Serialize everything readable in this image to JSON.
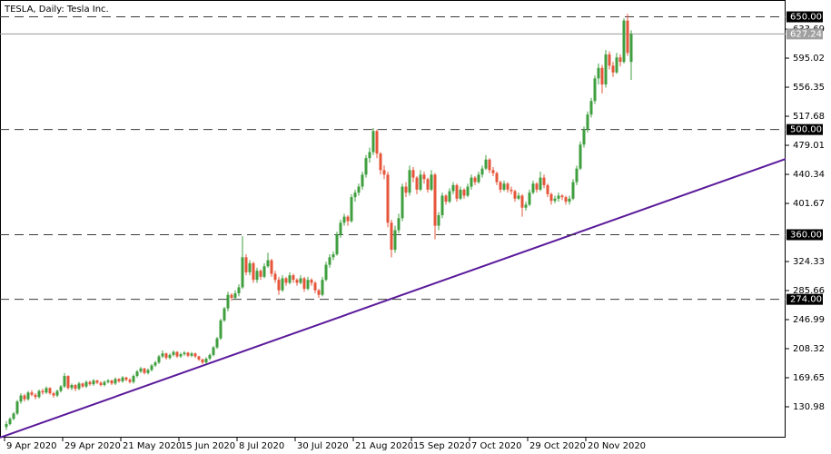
{
  "chart_data": {
    "type": "candlestick",
    "title": "TESLA, Daily:  Tesla Inc.",
    "colors": {
      "up": "#3f9f3f",
      "down": "#e6553a",
      "trendline": "#5b1a9a",
      "level": "#3a3a3a",
      "current": "#9a9a9a"
    },
    "ylim": [
      89.9,
      672.4
    ],
    "yticks": [
      130.98,
      169.65,
      208.32,
      246.99,
      285.66,
      324.33,
      401.67,
      440.34,
      479.01,
      517.68,
      556.35,
      595.02,
      633.69
    ],
    "levels": [
      {
        "value": 650,
        "label": "650.00"
      },
      {
        "value": 500,
        "label": "500.00"
      },
      {
        "value": 360,
        "label": "360.00"
      },
      {
        "value": 274,
        "label": "274.00"
      }
    ],
    "current_price": {
      "value": 627.24,
      "label": "627.24"
    },
    "trendline": [
      {
        "index": 0,
        "price": 93
      },
      {
        "index": 172,
        "price": 388
      }
    ],
    "categories": [
      "9 Apr 2020",
      null,
      null,
      null,
      null,
      null,
      null,
      null,
      null,
      null,
      null,
      null,
      null,
      null,
      null,
      null,
      "29 Apr 2020",
      null,
      null,
      null,
      null,
      null,
      null,
      null,
      null,
      null,
      null,
      null,
      null,
      null,
      null,
      null,
      "21 May 2020",
      null,
      null,
      null,
      null,
      null,
      null,
      null,
      null,
      null,
      null,
      null,
      null,
      null,
      null,
      null,
      "15 Jun 2020",
      null,
      null,
      null,
      null,
      null,
      null,
      null,
      null,
      null,
      null,
      null,
      null,
      null,
      null,
      null,
      "8 Jul 2020",
      null,
      null,
      null,
      null,
      null,
      null,
      null,
      null,
      null,
      null,
      null,
      null,
      null,
      null,
      null,
      "30 Jul 2020",
      null,
      null,
      null,
      null,
      null,
      null,
      null,
      null,
      null,
      null,
      null,
      null,
      null,
      null,
      null,
      "21 Aug 2020",
      null,
      null,
      null,
      null,
      null,
      null,
      null,
      null,
      null,
      null,
      null,
      null,
      null,
      null,
      null,
      "15 Sep 2020",
      null,
      null,
      null,
      null,
      null,
      null,
      null,
      null,
      null,
      null,
      null,
      null,
      null,
      null,
      null,
      "7 Oct 2020",
      null,
      null,
      null,
      null,
      null,
      null,
      null,
      null,
      null,
      null,
      null,
      null,
      null,
      null,
      null,
      "29 Oct 2020",
      null,
      null,
      null,
      null,
      null,
      null,
      null,
      null,
      null,
      null,
      null,
      null,
      null,
      null,
      null,
      "20 Nov 2020",
      null,
      null,
      null,
      null,
      null,
      null,
      null,
      null,
      null,
      null,
      null,
      null
    ],
    "candles": [
      [
        104,
        112,
        100,
        108
      ],
      [
        108,
        117,
        106,
        115
      ],
      [
        115,
        124,
        113,
        122
      ],
      [
        122,
        140,
        120,
        138
      ],
      [
        138,
        149,
        135,
        146
      ],
      [
        146,
        148,
        138,
        141
      ],
      [
        141,
        152,
        139,
        150
      ],
      [
        150,
        153,
        145,
        147
      ],
      [
        147,
        149,
        141,
        144
      ],
      [
        144,
        154,
        142,
        152
      ],
      [
        152,
        155,
        147,
        150
      ],
      [
        150,
        158,
        148,
        156
      ],
      [
        156,
        157,
        147,
        149
      ],
      [
        149,
        151,
        143,
        146
      ],
      [
        146,
        154,
        144,
        152
      ],
      [
        152,
        160,
        150,
        158
      ],
      [
        158,
        176,
        156,
        172
      ],
      [
        172,
        173,
        154,
        156
      ],
      [
        156,
        162,
        153,
        160
      ],
      [
        160,
        161,
        152,
        155
      ],
      [
        155,
        164,
        153,
        162
      ],
      [
        162,
        163,
        156,
        158
      ],
      [
        158,
        166,
        156,
        164
      ],
      [
        164,
        166,
        159,
        161
      ],
      [
        161,
        168,
        159,
        166
      ],
      [
        166,
        167,
        161,
        163
      ],
      [
        163,
        165,
        158,
        160
      ],
      [
        160,
        166,
        158,
        164
      ],
      [
        164,
        168,
        162,
        166
      ],
      [
        166,
        167,
        160,
        162
      ],
      [
        162,
        170,
        160,
        168
      ],
      [
        168,
        169,
        163,
        165
      ],
      [
        165,
        172,
        163,
        170
      ],
      [
        170,
        171,
        165,
        167
      ],
      [
        167,
        169,
        162,
        164
      ],
      [
        164,
        174,
        162,
        172
      ],
      [
        172,
        180,
        170,
        178
      ],
      [
        178,
        184,
        176,
        182
      ],
      [
        182,
        183,
        174,
        176
      ],
      [
        176,
        182,
        174,
        180
      ],
      [
        180,
        188,
        178,
        186
      ],
      [
        186,
        192,
        184,
        190
      ],
      [
        190,
        200,
        188,
        198
      ],
      [
        198,
        206,
        196,
        202
      ],
      [
        202,
        203,
        194,
        196
      ],
      [
        196,
        202,
        194,
        200
      ],
      [
        200,
        206,
        198,
        204
      ],
      [
        204,
        205,
        196,
        198
      ],
      [
        198,
        203,
        196,
        201
      ],
      [
        201,
        205,
        199,
        203
      ],
      [
        203,
        204,
        197,
        199
      ],
      [
        199,
        204,
        197,
        202
      ],
      [
        202,
        203,
        196,
        198
      ],
      [
        198,
        199,
        192,
        194
      ],
      [
        194,
        195,
        188,
        190
      ],
      [
        190,
        197,
        188,
        195
      ],
      [
        195,
        202,
        193,
        200
      ],
      [
        200,
        212,
        198,
        210
      ],
      [
        210,
        224,
        208,
        222
      ],
      [
        222,
        248,
        220,
        246
      ],
      [
        246,
        264,
        244,
        262
      ],
      [
        262,
        284,
        258,
        280
      ],
      [
        280,
        282,
        272,
        276
      ],
      [
        276,
        286,
        274,
        282
      ],
      [
        282,
        294,
        278,
        290
      ],
      [
        290,
        358,
        288,
        330
      ],
      [
        330,
        334,
        306,
        310
      ],
      [
        310,
        326,
        306,
        322
      ],
      [
        322,
        324,
        296,
        300
      ],
      [
        300,
        316,
        296,
        312
      ],
      [
        312,
        314,
        300,
        304
      ],
      [
        304,
        322,
        302,
        318
      ],
      [
        318,
        336,
        316,
        326
      ],
      [
        326,
        328,
        304,
        308
      ],
      [
        308,
        312,
        296,
        300
      ],
      [
        300,
        304,
        280,
        286
      ],
      [
        286,
        306,
        284,
        302
      ],
      [
        302,
        304,
        292,
        296
      ],
      [
        296,
        310,
        294,
        306
      ],
      [
        306,
        308,
        296,
        300
      ],
      [
        300,
        302,
        292,
        296
      ],
      [
        296,
        306,
        294,
        302
      ],
      [
        302,
        304,
        284,
        288
      ],
      [
        288,
        304,
        286,
        300
      ],
      [
        300,
        302,
        292,
        296
      ],
      [
        296,
        298,
        282,
        286
      ],
      [
        286,
        288,
        276,
        280
      ],
      [
        280,
        304,
        278,
        300
      ],
      [
        300,
        324,
        298,
        320
      ],
      [
        320,
        334,
        316,
        330
      ],
      [
        330,
        338,
        326,
        334
      ],
      [
        334,
        364,
        332,
        360
      ],
      [
        360,
        380,
        356,
        376
      ],
      [
        376,
        388,
        372,
        384
      ],
      [
        384,
        386,
        372,
        378
      ],
      [
        378,
        414,
        376,
        410
      ],
      [
        410,
        420,
        404,
        416
      ],
      [
        416,
        428,
        412,
        424
      ],
      [
        424,
        444,
        420,
        440
      ],
      [
        440,
        466,
        436,
        462
      ],
      [
        462,
        476,
        456,
        470
      ],
      [
        470,
        502,
        466,
        498
      ],
      [
        498,
        500,
        462,
        468
      ],
      [
        468,
        470,
        440,
        446
      ],
      [
        446,
        452,
        434,
        440
      ],
      [
        440,
        444,
        370,
        376
      ],
      [
        376,
        380,
        330,
        340
      ],
      [
        340,
        372,
        336,
        366
      ],
      [
        366,
        388,
        362,
        382
      ],
      [
        382,
        428,
        378,
        424
      ],
      [
        424,
        430,
        410,
        416
      ],
      [
        416,
        452,
        412,
        446
      ],
      [
        446,
        450,
        430,
        436
      ],
      [
        436,
        438,
        414,
        420
      ],
      [
        420,
        446,
        418,
        440
      ],
      [
        440,
        444,
        428,
        434
      ],
      [
        434,
        436,
        416,
        420
      ],
      [
        420,
        446,
        418,
        440
      ],
      [
        440,
        442,
        354,
        372
      ],
      [
        372,
        390,
        366,
        386
      ],
      [
        386,
        416,
        382,
        412
      ],
      [
        412,
        414,
        400,
        404
      ],
      [
        404,
        422,
        402,
        418
      ],
      [
        418,
        430,
        414,
        426
      ],
      [
        426,
        428,
        404,
        408
      ],
      [
        408,
        424,
        406,
        420
      ],
      [
        420,
        422,
        408,
        412
      ],
      [
        412,
        428,
        410,
        424
      ],
      [
        424,
        440,
        420,
        436
      ],
      [
        436,
        438,
        426,
        430
      ],
      [
        430,
        444,
        428,
        440
      ],
      [
        440,
        452,
        436,
        448
      ],
      [
        448,
        466,
        446,
        460
      ],
      [
        460,
        462,
        442,
        446
      ],
      [
        446,
        450,
        438,
        442
      ],
      [
        442,
        444,
        426,
        430
      ],
      [
        430,
        432,
        416,
        420
      ],
      [
        420,
        432,
        418,
        428
      ],
      [
        428,
        430,
        416,
        420
      ],
      [
        420,
        424,
        414,
        418
      ],
      [
        418,
        420,
        404,
        408
      ],
      [
        408,
        416,
        406,
        412
      ],
      [
        412,
        414,
        384,
        396
      ],
      [
        396,
        404,
        392,
        400
      ],
      [
        400,
        420,
        398,
        416
      ],
      [
        416,
        432,
        414,
        428
      ],
      [
        428,
        430,
        416,
        420
      ],
      [
        420,
        444,
        418,
        436
      ],
      [
        436,
        440,
        422,
        426
      ],
      [
        426,
        428,
        410,
        414
      ],
      [
        414,
        416,
        400,
        405
      ],
      [
        405,
        412,
        402,
        408
      ],
      [
        408,
        416,
        404,
        412
      ],
      [
        412,
        414,
        406,
        410
      ],
      [
        410,
        412,
        400,
        404
      ],
      [
        404,
        412,
        400,
        408
      ],
      [
        408,
        434,
        406,
        430
      ],
      [
        430,
        452,
        426,
        448
      ],
      [
        448,
        484,
        446,
        480
      ],
      [
        480,
        504,
        476,
        500
      ],
      [
        500,
        524,
        496,
        520
      ],
      [
        520,
        542,
        516,
        538
      ],
      [
        538,
        572,
        534,
        568
      ],
      [
        568,
        588,
        560,
        582
      ],
      [
        582,
        586,
        548,
        560
      ],
      [
        560,
        606,
        556,
        600
      ],
      [
        600,
        604,
        580,
        585
      ],
      [
        585,
        590,
        570,
        576
      ],
      [
        576,
        602,
        574,
        596
      ],
      [
        596,
        600,
        584,
        590
      ],
      [
        590,
        648,
        588,
        645
      ],
      [
        645,
        654,
        598,
        602
      ],
      [
        590,
        632,
        566,
        627.24
      ]
    ]
  }
}
